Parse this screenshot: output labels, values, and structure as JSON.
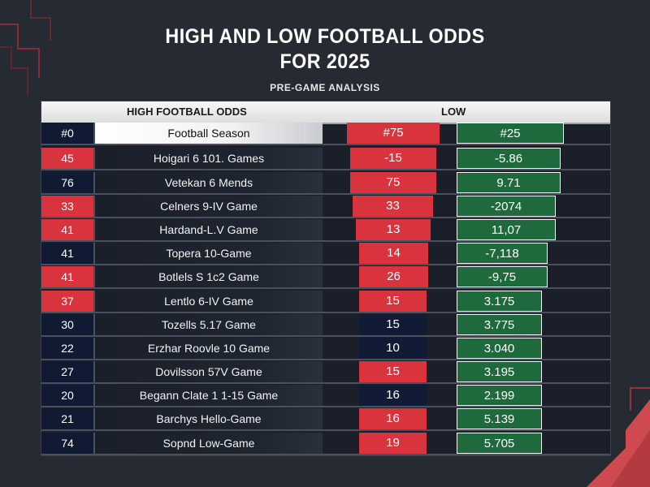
{
  "title": {
    "line1": "HIGH AND  LOW FOOTBALL ODDS",
    "line2": "FOR 2025"
  },
  "subtitle": "PRE-GAME ANALYSIS",
  "table": {
    "header_left": "HIGH FOOTBALL ODDS",
    "header_right": "LOW",
    "rows": [
      {
        "num": "#0",
        "game": "Football Season",
        "high": "#75",
        "low": "#25"
      },
      {
        "num": "45",
        "game": "Hoigari 6 101. Games",
        "high": "-15",
        "low": "-5.86"
      },
      {
        "num": "76",
        "game": "Vetekan 6 Mends",
        "high": "75",
        "low": "9.71"
      },
      {
        "num": "33",
        "game": "Celners 9-IV Game",
        "high": "33",
        "low": "-2074"
      },
      {
        "num": "41",
        "game": "Hardand-L.V Game",
        "high": "13",
        "low": "11,07"
      },
      {
        "num": "41",
        "game": "Topera 10-Game",
        "high": "14",
        "low": "-7,118"
      },
      {
        "num": "41",
        "game": "Botlels S 1c2 Game",
        "high": "26",
        "low": "-9,75"
      },
      {
        "num": "37",
        "game": "Lentlo 6-IV Game",
        "high": "15",
        "low": "3.175"
      },
      {
        "num": "30",
        "game": "Tozells 5.17 Game",
        "high": "15",
        "low": "3.775"
      },
      {
        "num": "22",
        "game": "Erzhar Roovle 10 Game",
        "high": "10",
        "low": "3.040"
      },
      {
        "num": "27",
        "game": "Dovilsson 57V Game",
        "high": "15",
        "low": "3.195"
      },
      {
        "num": "20",
        "game": "Begann Clate 1 1-15 Game",
        "high": "16",
        "low": "2.199"
      },
      {
        "num": "21",
        "game": "Barchys Hello-Game",
        "high": "16",
        "low": "5.139"
      },
      {
        "num": "74",
        "game": "Sopnd Low-Game",
        "high": "19",
        "low": "5.705"
      }
    ]
  },
  "colors": {
    "background": "#262a33",
    "accent_red": "#d9343d",
    "navy": "#101a33",
    "green": "#1e6a3c"
  }
}
